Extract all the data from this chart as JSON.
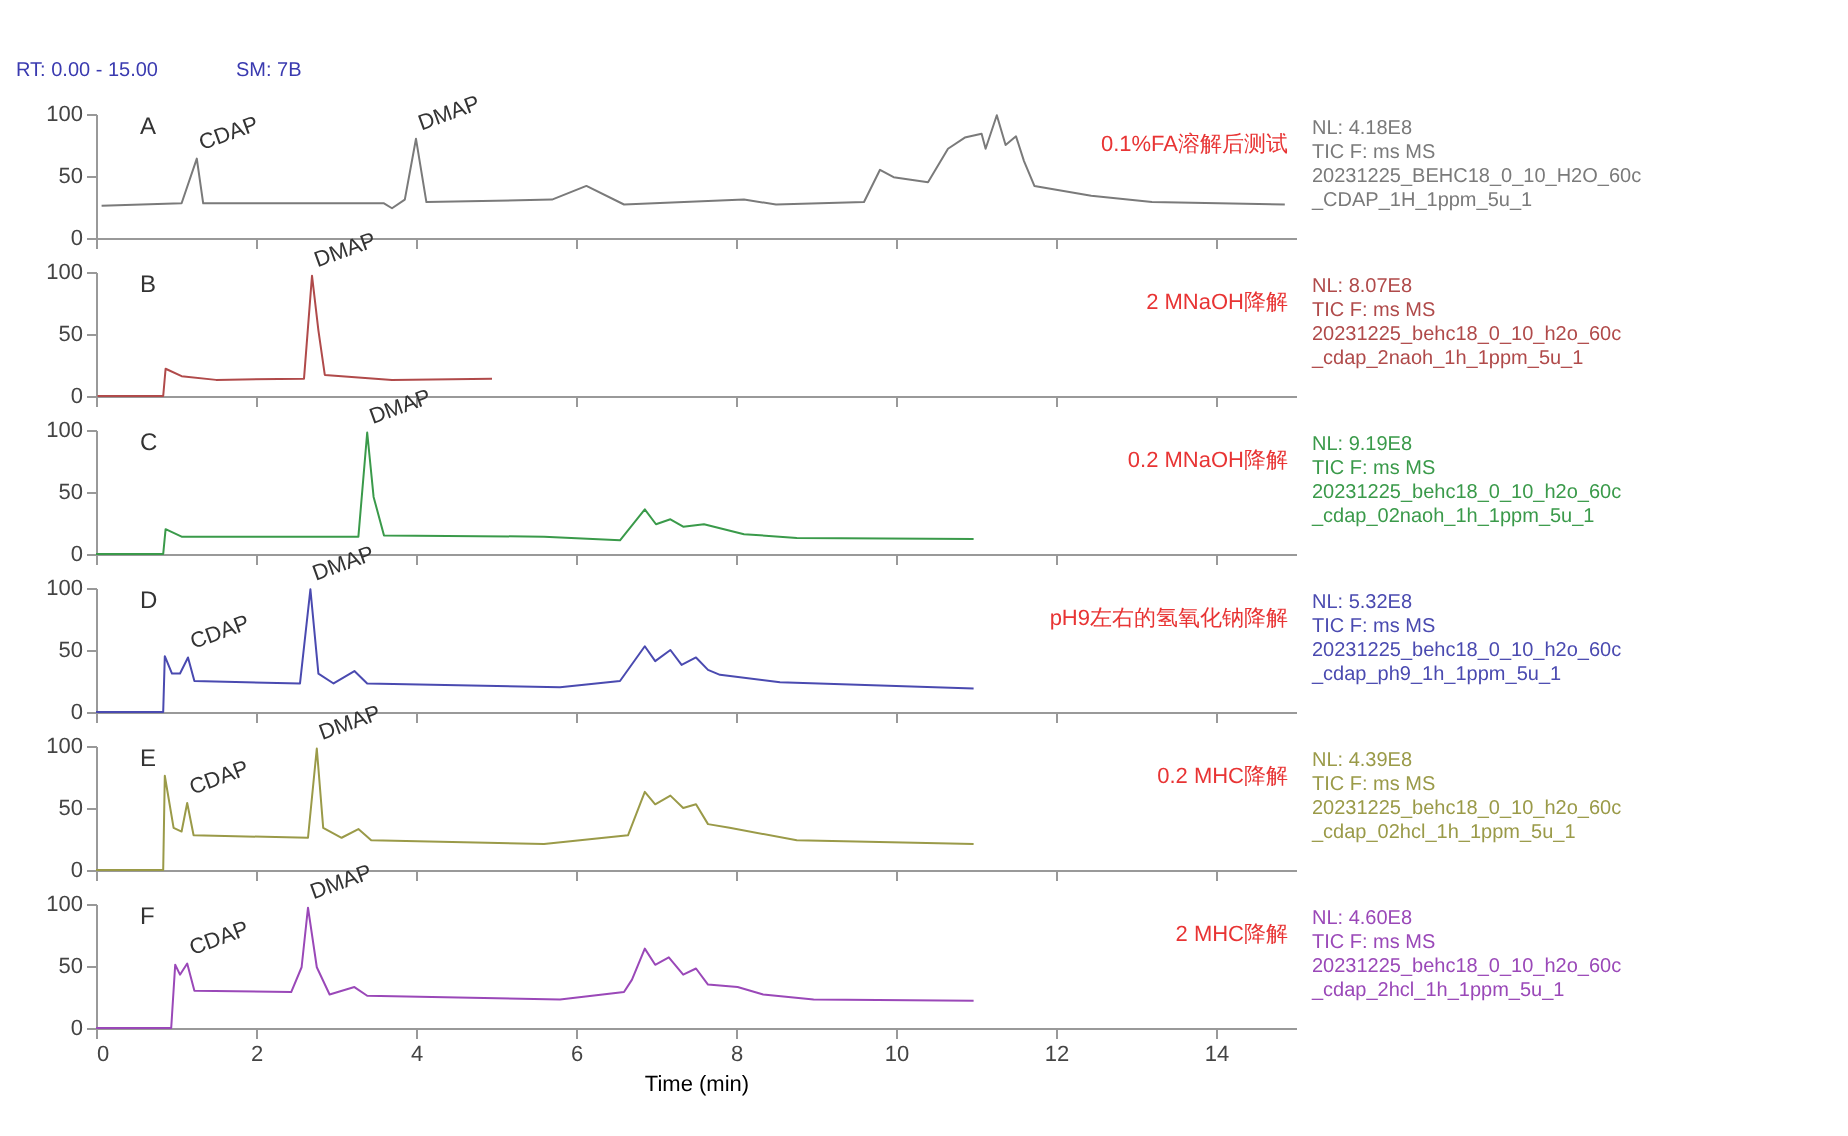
{
  "chart_data": [
    {
      "type": "line",
      "title": "RT: 0.00 - 15.00",
      "subtitle": "SM: 7B",
      "xlim": [
        0,
        15
      ],
      "xticks": [
        0,
        2,
        4,
        6,
        8,
        10,
        12,
        14
      ],
      "ylim": [
        0,
        100
      ],
      "yticks": [
        0,
        50,
        100
      ],
      "tick_labels": "y",
      "x": [
        0.07,
        1.07,
        1.26,
        1.34,
        3.6,
        3.7,
        3.86,
        4.0,
        4.13,
        5.7,
        6.13,
        6.6,
        8.1,
        8.5,
        9.6,
        9.8,
        9.97,
        10.4,
        10.65,
        10.86,
        11.07,
        11.12,
        11.26,
        11.37,
        11.5,
        11.6,
        11.73,
        12.44,
        13.2,
        14.86
      ],
      "series": [
        {
          "color": "#7a7a7a",
          "values": [
            26,
            28,
            64,
            28,
            28,
            24,
            31,
            80,
            29,
            31,
            42,
            27,
            31,
            27,
            29,
            55,
            49,
            45,
            72,
            81,
            84,
            72,
            99,
            75,
            82,
            62,
            42,
            34,
            29,
            27
          ]
        }
      ],
      "annotations": [
        "A",
        "0.1%FA溶解后测试",
        "NL: 4.18E8",
        "TIC F: ms MS",
        "20231225_BEHC18_0_10_H2O_60c_CDAP_1H_1ppm_5u_1",
        {
          "text": "CDAP",
          "x": 1.26,
          "y": 64
        },
        {
          "text": "DMAP",
          "x": 4.0,
          "y": 80
        }
      ]
    },
    {
      "type": "line",
      "xlim": [
        0,
        15
      ],
      "xticks": [
        0,
        2,
        4,
        6,
        8,
        10,
        12,
        14
      ],
      "ylim": [
        0,
        100
      ],
      "yticks": [
        0,
        50,
        100
      ],
      "tick_labels": "y",
      "x": [
        0.02,
        0.84,
        0.87,
        1.07,
        1.5,
        2.6,
        2.7,
        2.78,
        2.86,
        3.7,
        4.95
      ],
      "series": [
        {
          "color": "#b04a4a",
          "values": [
            0,
            0,
            22,
            16,
            13,
            14,
            97,
            53,
            17,
            13,
            14
          ]
        }
      ],
      "annotations": [
        "B",
        "2 MNaOH降解",
        "NL: 8.07E8",
        "TIC F: ms MS",
        "20231225_behc18_0_10_h2o_60c_cdap_2naoh_1h_1ppm_5u_1",
        {
          "text": "DMAP",
          "x": 2.7,
          "y": 97
        }
      ]
    },
    {
      "type": "line",
      "xlim": [
        0,
        15
      ],
      "xticks": [
        0,
        2,
        4,
        6,
        8,
        10,
        12,
        14
      ],
      "ylim": [
        0,
        100
      ],
      "yticks": [
        0,
        50,
        100
      ],
      "tick_labels": "y",
      "x": [
        0,
        0.84,
        0.87,
        1.07,
        3.28,
        3.39,
        3.47,
        3.6,
        5.6,
        6.55,
        6.86,
        7.0,
        7.18,
        7.34,
        7.6,
        8.1,
        8.76,
        10.97
      ],
      "series": [
        {
          "color": "#3a9a4a",
          "values": [
            0,
            0,
            20,
            14,
            14,
            98,
            46,
            15,
            14,
            11,
            36,
            24,
            28,
            22,
            24,
            16,
            13,
            12
          ]
        }
      ],
      "annotations": [
        "C",
        "0.2 MNaOH降解",
        "NL: 9.19E8",
        "TIC F: ms MS",
        "20231225_behc18_0_10_h2o_60c_cdap_02naoh_1h_1ppm_5u_1",
        {
          "text": "DMAP",
          "x": 3.39,
          "y": 98
        }
      ]
    },
    {
      "type": "line",
      "xlim": [
        0,
        15
      ],
      "xticks": [
        0,
        2,
        4,
        6,
        8,
        10,
        12,
        14
      ],
      "ylim": [
        0,
        100
      ],
      "yticks": [
        0,
        50,
        100
      ],
      "tick_labels": "y",
      "x": [
        0,
        0.84,
        0.86,
        0.95,
        1.05,
        1.15,
        1.23,
        2.55,
        2.68,
        2.78,
        2.97,
        3.23,
        3.39,
        5.8,
        6.55,
        6.86,
        6.99,
        7.18,
        7.32,
        7.5,
        7.65,
        7.8,
        8.55,
        10.97
      ],
      "series": [
        {
          "color": "#4a4ab0",
          "values": [
            0,
            0,
            45,
            31,
            31,
            44,
            25,
            23,
            99,
            31,
            23,
            33,
            23,
            20,
            25,
            53,
            41,
            50,
            38,
            44,
            34,
            30,
            24,
            19
          ]
        }
      ],
      "annotations": [
        "D",
        "pH9左右的氢氧化钠降解",
        "NL: 5.32E8",
        "TIC F: ms MS",
        "20231225_behc18_0_10_h2o_60c_cdap_ph9_1h_1ppm_5u_1",
        {
          "text": "CDAP",
          "x": 1.15,
          "y": 44
        },
        {
          "text": "DMAP",
          "x": 2.68,
          "y": 99
        }
      ]
    },
    {
      "type": "line",
      "xlim": [
        0,
        15
      ],
      "xticks": [
        0,
        2,
        4,
        6,
        8,
        10,
        12,
        14
      ],
      "ylim": [
        0,
        100
      ],
      "yticks": [
        0,
        50,
        100
      ],
      "tick_labels": "y",
      "x": [
        0,
        0.84,
        0.86,
        0.97,
        1.07,
        1.14,
        1.22,
        2.65,
        2.76,
        2.84,
        3.07,
        3.28,
        3.44,
        5.6,
        6.65,
        6.86,
        6.99,
        7.18,
        7.34,
        7.5,
        7.65,
        7.92,
        8.76,
        10.97
      ],
      "series": [
        {
          "color": "#9a9a48",
          "values": [
            0,
            0,
            76,
            34,
            31,
            54,
            28,
            26,
            98,
            34,
            26,
            33,
            24,
            21,
            28,
            63,
            53,
            60,
            50,
            53,
            37,
            34,
            24,
            21
          ]
        }
      ],
      "annotations": [
        "E",
        "0.2 MHC降解",
        "NL: 4.39E8",
        "TIC F: ms MS",
        "20231225_behc18_0_10_h2o_60c_cdap_02hcl_1h_1ppm_5u_1",
        {
          "text": "CDAP",
          "x": 1.14,
          "y": 54
        },
        {
          "text": "DMAP",
          "x": 2.76,
          "y": 98
        }
      ]
    },
    {
      "type": "line",
      "xlim": [
        0,
        15
      ],
      "xticks": [
        0,
        2,
        4,
        6,
        8,
        10,
        12,
        14
      ],
      "ylim": [
        0,
        100
      ],
      "yticks": [
        0,
        50,
        100
      ],
      "xlabel": "Time (min)",
      "x": [
        0,
        0.94,
        0.99,
        1.05,
        1.14,
        1.23,
        2.44,
        2.57,
        2.65,
        2.76,
        2.92,
        3.23,
        3.39,
        5.8,
        6.6,
        6.7,
        6.86,
        6.99,
        7.16,
        7.34,
        7.5,
        7.65,
        8.02,
        8.34,
        8.97,
        10.97
      ],
      "series": [
        {
          "color": "#9a48b8",
          "values": [
            0,
            0,
            51,
            43,
            52,
            30,
            29,
            49,
            97,
            49,
            27,
            33,
            26,
            23,
            29,
            39,
            64,
            51,
            57,
            43,
            48,
            35,
            33,
            27,
            23,
            22
          ]
        }
      ],
      "annotations": [
        "F",
        "2 MHC降解",
        "NL: 4.60E8",
        "TIC F: ms MS",
        "20231225_behc18_0_10_h2o_60c_cdap_2hcl_1h_1ppm_5u_1",
        {
          "text": "CDAP",
          "x": 1.14,
          "y": 52
        },
        {
          "text": "DMAP",
          "x": 2.65,
          "y": 97
        }
      ]
    }
  ]
}
